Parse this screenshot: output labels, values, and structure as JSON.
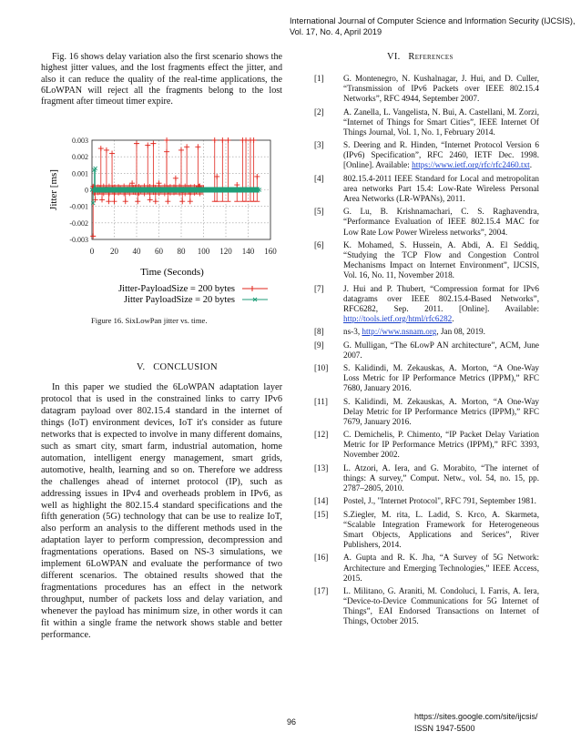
{
  "header": {
    "line1": "International Journal of Computer Science and Information Security (IJCSIS),",
    "line2": "Vol. 17, No. 4, April 2019"
  },
  "intro_paragraph": "Fig. 16 shows delay variation also the first scenario shows the highest jitter values, and the lost fragments effect the jitter, and also it can reduce the quality of the  real-time applications, the 6LoWPAN will reject all the fragments belong to the lost fragment after timeout timer expire.",
  "figure_caption": "Figure 16. SixLowPan jitter vs. time.",
  "conclusion": {
    "heading_num": "V.",
    "heading": "CONCLUSION",
    "text": "In this paper we studied the 6LoWPAN adaptation layer protocol that is used in the constrained links to carry IPv6 datagram payload over 802.15.4 standard in the internet of things (IoT) environment devices, IoT it's consider as future networks that is expected to involve in many different domains, such as smart city, smart farm, industrial automation, home automation, intelligent energy management, smart grids, automotive, health, learning and so on. Therefore we address the challenges ahead of internet protocol (IP), such as addressing issues in IPv4 and overheads problem in IPv6, as well as highlight the 802.15.4 standard specifications and the fifth generation (5G) technology that can be use to realize IoT, also perform an analysis to the different methods used in the adaptation layer to perform compression, decompression and fragmentations   operations. Based on NS-3 simulations, we implement 6LoWPAN and evaluate the performance of two different scenarios. The obtained results showed that the fragmentations procedures has an effect in the network throughput, number of packets loss and delay variation, and whenever the payload has minimum size, in other words it can fit within a single frame the network shows stable and better performance."
  },
  "references": {
    "heading_num": "VI.",
    "heading": "References",
    "items": [
      {
        "n": "[1]",
        "text": "G. Montenegro, N. Kushalnagar, J. Hui, and D. Culler, “Transmission of IPv6 Packets over IEEE  802.15.4 Networks”, RFC 4944, September 2007.",
        "link": ""
      },
      {
        "n": "[2]",
        "text": "A. Zanella,  L. Vangelista, N. Bui, A. Castellani, M. Zorzi, “Internet  of Things for Smart Cities”, IEEE Internet Of Things Journal, Vol. 1, No. 1, February 2014.",
        "link": ""
      },
      {
        "n": "[3]",
        "text": "S. Deering and R. Hinden, “Internet Protocol Version 6 (IPv6) Specification”, RFC 2460, IETF Dec. 1998. [Online]. Available: ",
        "link": "https://www.ietf.org/rfc/rfc2460.txt",
        "after": "."
      },
      {
        "n": "[4]",
        "text": "802.15.4-2011 IEEE Standard for Local and metropolitan area networks Part 15.4: Low-Rate Wireless Personal Area  Networks (LR-WPANs), 2011.",
        "link": ""
      },
      {
        "n": "[5]",
        "text": "G. Lu, B.  Krishnamachari,  C. S. Raghavendra, “Performance Evaluation of IEEE 802.15.4 MAC for Low Rate Low Power Wireless networks”, 2004.",
        "link": ""
      },
      {
        "n": "[6]",
        "text": "K. Mohamed, S. Hussein, A. Abdi, A. El Seddiq, “Studying the TCP Flow and Congestion Control Mechanisms Impact on Internet Environment”, IJCSIS, Vol. 16, No. 11, November 2018.",
        "link": ""
      },
      {
        "n": "[7]",
        "text": "J. Hui and P. Thubert, “Compression format for IPv6 datagrams over IEEE 802.15.4-Based Networks”, RFC6282, Sep. 2011. [Online]. Available: ",
        "link": "http://tools.ietf.org/html/rfc6282",
        "after": "."
      },
      {
        "n": "[8]",
        "text": "ns-3, ",
        "link": "http://www.nsnam.org",
        "after": ", Jan 08, 2019."
      },
      {
        "n": "[9]",
        "text": "G. Mulligan, “The 6LowP AN architecture”, ACM, June  2007.",
        "link": ""
      },
      {
        "n": "[10]",
        "text": "S. Kalidindi, M. Zekauskas, A. Morton, “A One-Way Loss Metric for IP Performance Metrics (IPPM),” RFC 7680, January 2016.",
        "link": ""
      },
      {
        "n": "[11]",
        "text": "S. Kalidindi, M. Zekauskas, A. Morton, “A One-Way Delay Metric for IP Performance Metrics (IPPM),” RFC 7679, January 2016.",
        "link": ""
      },
      {
        "n": "[12]",
        "text": "C. Demichelis, P. Chimento, “IP Packet Delay Variation Metric for IP Performance Metrics (IPPM),” RFC 3393, November 2002.",
        "link": ""
      },
      {
        "n": "[13]",
        "text": "L. Atzori, A. Iera, and G. Morabito, “The internet of things: A survey,” Comput. Netw., vol. 54, no. 15, pp. 2787–2805, 2010.",
        "link": ""
      },
      {
        "n": "[14]",
        "text": "Postel, J., \"Internet Protocol\", RFC 791,  September 1981.",
        "link": ""
      },
      {
        "n": "[15]",
        "text": "S.Ziegler, M. rita, L. Ladid, S. Krco, A. Skarmeta, “Scalable Integration Framework for Heterogeneous Smart Objects, Applications and Serices”, River Publishers, 2014.",
        "link": ""
      },
      {
        "n": "[16]",
        "text": "A. Gupta and R. K. Jha, “A Survey of 5G Network: Architecture and Emerging Technologies,” IEEE Access, 2015.",
        "link": ""
      },
      {
        "n": "[17]",
        "text": "L. Militano, G. Araniti, M. Condoluci, I. Farris, A. Iera, “Device-to-Device Communications for 5G Internet of Things”, EAI Endorsed Transactions on Internet of Things, October 2015.",
        "link": ""
      }
    ]
  },
  "footer": {
    "page": "96",
    "url": "https://sites.google.com/site/ijcsis/",
    "issn": "ISSN 1947-5500"
  },
  "chart_data": {
    "type": "line",
    "title": "",
    "xlabel": "Time (Seconds)",
    "ylabel": "Jitter [ms]",
    "xlim": [
      0,
      160
    ],
    "ylim": [
      -0.003,
      0.003
    ],
    "xticks": [
      "0",
      "20",
      "40",
      "60",
      "80",
      "100",
      "120",
      "140",
      "160"
    ],
    "yticks": [
      "0.003",
      "0.002",
      "0.001",
      "0",
      "-0.001",
      "-0.002",
      "-0.003"
    ],
    "grid": true,
    "legend_position": "bottom",
    "series": [
      {
        "name": "Jitter-PayloadSize = 200 bytes",
        "color": "#e0241b",
        "marker": "plus",
        "x": [
          1,
          1,
          3,
          8,
          9,
          13,
          15,
          18,
          20,
          30,
          36,
          40,
          41,
          50,
          52,
          55,
          57,
          60,
          67,
          67,
          68,
          75,
          80,
          81,
          85,
          88,
          95,
          96,
          100,
          110,
          112,
          117,
          122,
          130,
          135,
          138,
          142,
          145,
          148
        ],
        "y": [
          -0.0028,
          0.0002,
          -0.0006,
          0.0025,
          -0.0006,
          0.0024,
          -0.0007,
          0.0022,
          -0.0007,
          -0.0007,
          0.0004,
          0.0028,
          -0.0007,
          0.0027,
          -0.0006,
          0.0028,
          -0.0007,
          0.0004,
          0.003,
          0.0023,
          -0.0007,
          0.0007,
          0.0024,
          -0.0007,
          0.0026,
          -0.0007,
          0.0026,
          0.0002,
          0.0001,
          0.003,
          0.0008,
          0.003,
          0.003,
          0.0003,
          0.003,
          0.003,
          0.003,
          0.003,
          0.0008
        ],
        "baseline_band": [
          -0.0003,
          0.0003
        ],
        "x_end": 100
      },
      {
        "name": "Jitter PayloadSize = 20 bytes",
        "color": "#1f9e78",
        "marker": "x",
        "x": [
          0,
          1,
          2,
          3,
          150
        ],
        "y": [
          0,
          -0.0008,
          0.0012,
          0.0013,
          0
        ],
        "x_end": 150
      }
    ]
  }
}
